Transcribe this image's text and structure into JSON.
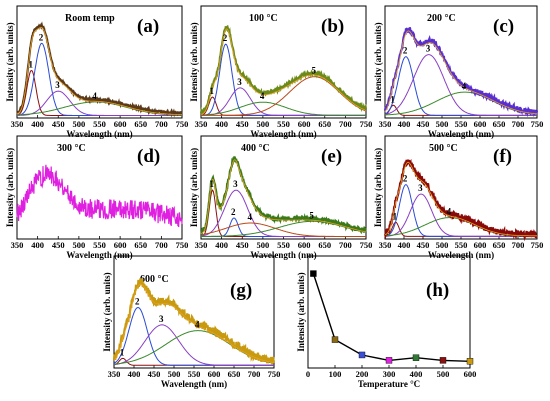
{
  "chart_data": [
    {
      "panel": "(a)",
      "type": "line",
      "title": "Room temp",
      "xlabel": "Wavelength (nm)",
      "ylabel": "Intensity (arb. units)",
      "xlim": [
        350,
        750
      ],
      "xticks": [
        350,
        400,
        450,
        500,
        550,
        600,
        650,
        700,
        750
      ],
      "data_color": "#5a3a1a",
      "noise": 0.01,
      "components": [
        {
          "label": "1",
          "center": 385,
          "width": 11,
          "amplitude": 0.5,
          "color": "#8b1010"
        },
        {
          "label": "2",
          "center": 410,
          "width": 17,
          "amplitude": 0.8,
          "color": "#2a4bd6"
        },
        {
          "label": "3",
          "center": 450,
          "width": 28,
          "amplitude": 0.27,
          "color": "#8a3fc4"
        },
        {
          "label": "4",
          "center": 540,
          "width": 75,
          "amplitude": 0.15,
          "color": "#3b8a2b"
        }
      ]
    },
    {
      "panel": "(b)",
      "type": "line",
      "title": "100 °C",
      "xlabel": "Wavelength (nm)",
      "ylabel": "Intensity (arb. units)",
      "xlim": [
        350,
        750
      ],
      "xticks": [
        350,
        400,
        450,
        500,
        550,
        600,
        650,
        700,
        750
      ],
      "data_color": "#6b8a1a",
      "noise": 0.015,
      "components": [
        {
          "label": "1",
          "center": 378,
          "width": 9,
          "amplitude": 0.18,
          "color": "#8b1010"
        },
        {
          "label": "2",
          "center": 410,
          "width": 15,
          "amplitude": 0.7,
          "color": "#2a4bd6"
        },
        {
          "label": "3",
          "center": 445,
          "width": 25,
          "amplitude": 0.27,
          "color": "#8a3fc4"
        },
        {
          "label": "4",
          "center": 500,
          "width": 55,
          "amplitude": 0.13,
          "color": "#3b8a2b"
        },
        {
          "label": "5",
          "center": 625,
          "width": 60,
          "amplitude": 0.38,
          "color": "#b84a1a"
        }
      ]
    },
    {
      "panel": "(c)",
      "type": "line",
      "title": "200 °C",
      "xlabel": "Wavelength (nm)",
      "ylabel": "Intensity (arb. units)",
      "xlim": [
        350,
        750
      ],
      "xticks": [
        350,
        400,
        450,
        500,
        550,
        600,
        650,
        700,
        750
      ],
      "data_color": "#5a2fd0",
      "noise": 0.025,
      "components": [
        {
          "label": "1",
          "center": 372,
          "width": 9,
          "amplitude": 0.1,
          "color": "#8b1010"
        },
        {
          "label": "2",
          "center": 405,
          "width": 20,
          "amplitude": 0.58,
          "color": "#2a4bd6"
        },
        {
          "label": "3",
          "center": 465,
          "width": 40,
          "amplitude": 0.6,
          "color": "#8a3fc4"
        },
        {
          "label": "4",
          "center": 560,
          "width": 75,
          "amplitude": 0.23,
          "color": "#3b8a2b"
        }
      ]
    },
    {
      "panel": "(d)",
      "type": "line",
      "title": "300 °C",
      "xlabel": "Wavelength (nm)",
      "ylabel": "Intensity (arb. units)",
      "xlim": [
        350,
        750
      ],
      "xticks": [
        350,
        400,
        450,
        500,
        550,
        600,
        650,
        700,
        750
      ],
      "data_color": "#e020e0",
      "noise": 0.09,
      "components": [
        {
          "center": 420,
          "width": 45,
          "amplitude": 0.42,
          "color": "#e020e0"
        },
        {
          "center": 600,
          "width": 150,
          "amplitude": 0.22,
          "color": "#e020e0"
        }
      ]
    },
    {
      "panel": "(e)",
      "type": "line",
      "title": "400 °C",
      "xlabel": "Wavelength (nm)",
      "ylabel": "Intensity (arb. units)",
      "xlim": [
        350,
        750
      ],
      "xticks": [
        350,
        400,
        450,
        500,
        550,
        600,
        650,
        700,
        750
      ],
      "data_color": "#3b7a1a",
      "noise": 0.025,
      "components": [
        {
          "label": "1",
          "center": 378,
          "width": 8,
          "amplitude": 0.55,
          "color": "#8b1010"
        },
        {
          "label": "2",
          "center": 430,
          "width": 10,
          "amplitude": 0.22,
          "color": "#2a4bd6"
        },
        {
          "label": "3",
          "center": 435,
          "width": 28,
          "amplitude": 0.55,
          "color": "#8a3fc4"
        },
        {
          "label": "4",
          "center": 470,
          "width": 60,
          "amplitude": 0.16,
          "color": "#b84a1a"
        },
        {
          "label": "5",
          "center": 620,
          "width": 80,
          "amplitude": 0.18,
          "color": "#3b8a2b"
        }
      ]
    },
    {
      "panel": "(f)",
      "type": "line",
      "title": "500 °C",
      "xlabel": "Wavelength (nm)",
      "ylabel": "Intensity (arb. units)",
      "xlim": [
        350,
        750
      ],
      "xticks": [
        350,
        400,
        450,
        500,
        550,
        600,
        650,
        700,
        750
      ],
      "data_color": "#8a0a0a",
      "noise": 0.035,
      "components": [
        {
          "label": "1",
          "center": 378,
          "width": 9,
          "amplitude": 0.15,
          "color": "#8b1010"
        },
        {
          "label": "2",
          "center": 405,
          "width": 17,
          "amplitude": 0.55,
          "color": "#2a4bd6"
        },
        {
          "label": "3",
          "center": 445,
          "width": 28,
          "amplitude": 0.45,
          "color": "#8a3fc4"
        },
        {
          "label": "4",
          "center": 520,
          "width": 65,
          "amplitude": 0.2,
          "color": "#3b8a2b"
        }
      ]
    },
    {
      "panel": "(g)",
      "type": "line",
      "title": "600 °C",
      "xlabel": "Wavelength (nm)",
      "ylabel": "Intensity (arb. units)",
      "xlim": [
        350,
        750
      ],
      "xticks": [
        350,
        400,
        450,
        500,
        550,
        600,
        650,
        700,
        750
      ],
      "data_color": "#c89a10",
      "noise": 0.035,
      "components": [
        {
          "label": "1",
          "center": 372,
          "width": 9,
          "amplitude": 0.06,
          "color": "#8b1010"
        },
        {
          "label": "2",
          "center": 410,
          "width": 23,
          "amplitude": 0.5,
          "color": "#2a4bd6"
        },
        {
          "label": "3",
          "center": 470,
          "width": 42,
          "amplitude": 0.35,
          "color": "#8a3fc4"
        },
        {
          "label": "4",
          "center": 560,
          "width": 80,
          "amplitude": 0.3,
          "color": "#3b8a2b"
        }
      ]
    },
    {
      "panel": "(h)",
      "type": "line",
      "title": "",
      "xlabel": "Temperature °C",
      "ylabel": "Intensity (arb. units)",
      "xlim": [
        0,
        600
      ],
      "xticks": [
        0,
        100,
        200,
        300,
        400,
        500,
        600
      ],
      "ylim": [
        0,
        1.15
      ],
      "x": [
        20,
        100,
        200,
        300,
        400,
        500,
        600
      ],
      "y": [
        1.0,
        0.27,
        0.1,
        0.04,
        0.07,
        0.04,
        0.03
      ],
      "marker_colors": [
        "#000000",
        "#8b6914",
        "#3a4fd6",
        "#e020e0",
        "#2e7d32",
        "#8b1010",
        "#c89a10"
      ]
    }
  ]
}
